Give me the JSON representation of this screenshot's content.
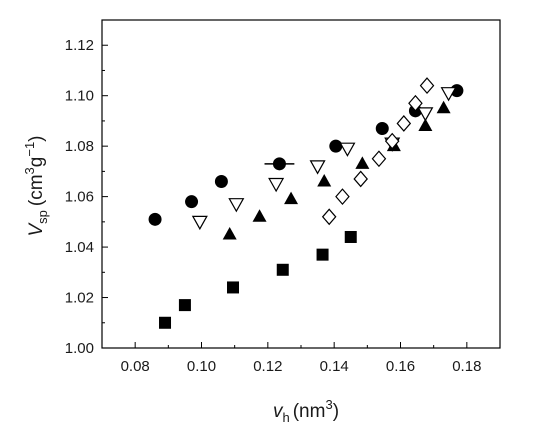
{
  "chart_data": {
    "type": "scatter",
    "title": "",
    "xlabel": {
      "main": "v",
      "sub": "h",
      "unit": "(nm",
      "sup": "3",
      "close": ")"
    },
    "ylabel": {
      "main": "V",
      "sub": "sp",
      "unit1": "(cm",
      "sup1": "3",
      "g": "g",
      "sup2": "−1",
      "close": ")"
    },
    "xlim": [
      0.07,
      0.19
    ],
    "ylim": [
      1.0,
      1.13
    ],
    "x_ticks": [
      "0.08",
      "0.10",
      "0.12",
      "0.14",
      "0.16",
      "0.18"
    ],
    "x_tick_values": [
      0.08,
      0.1,
      0.12,
      0.14,
      0.16,
      0.18
    ],
    "y_ticks": [
      "1.00",
      "1.02",
      "1.04",
      "1.06",
      "1.08",
      "1.10",
      "1.12"
    ],
    "y_tick_values": [
      1.0,
      1.02,
      1.04,
      1.06,
      1.08,
      1.1,
      1.12
    ],
    "grid": false,
    "legend": "none",
    "series": [
      {
        "marker": "circle-filled",
        "color": "#000000",
        "points": [
          [
            0.086,
            1.051
          ],
          [
            0.097,
            1.058
          ],
          [
            0.106,
            1.066
          ],
          [
            0.1235,
            1.073
          ],
          [
            0.1405,
            1.08
          ],
          [
            0.1545,
            1.087
          ],
          [
            0.1645,
            1.094
          ],
          [
            0.177,
            1.102
          ]
        ],
        "xerr": [
          0,
          0,
          0,
          0.0045,
          0,
          0,
          0,
          0
        ]
      },
      {
        "marker": "triangle-down-open",
        "color": "#000000",
        "points": [
          [
            0.0995,
            1.05
          ],
          [
            0.1105,
            1.057
          ],
          [
            0.1225,
            1.065
          ],
          [
            0.135,
            1.072
          ],
          [
            0.144,
            1.079
          ],
          [
            0.1575,
            1.081
          ],
          [
            0.1675,
            1.093
          ],
          [
            0.1745,
            1.101
          ]
        ]
      },
      {
        "marker": "triangle-up-filled",
        "color": "#000000",
        "points": [
          [
            0.1085,
            1.045
          ],
          [
            0.1175,
            1.052
          ],
          [
            0.127,
            1.059
          ],
          [
            0.137,
            1.066
          ],
          [
            0.1485,
            1.073
          ],
          [
            0.158,
            1.08
          ],
          [
            0.1675,
            1.088
          ],
          [
            0.173,
            1.095
          ]
        ]
      },
      {
        "marker": "diamond-open",
        "color": "#000000",
        "points": [
          [
            0.1385,
            1.052
          ],
          [
            0.1425,
            1.06
          ],
          [
            0.148,
            1.067
          ],
          [
            0.1535,
            1.075
          ],
          [
            0.1575,
            1.082
          ],
          [
            0.161,
            1.089
          ],
          [
            0.1645,
            1.097
          ],
          [
            0.168,
            1.104
          ]
        ]
      },
      {
        "marker": "square-filled",
        "color": "#000000",
        "points": [
          [
            0.089,
            1.01
          ],
          [
            0.095,
            1.017
          ],
          [
            0.1095,
            1.024
          ],
          [
            0.1245,
            1.031
          ],
          [
            0.1365,
            1.037
          ],
          [
            0.145,
            1.044
          ]
        ]
      }
    ]
  }
}
